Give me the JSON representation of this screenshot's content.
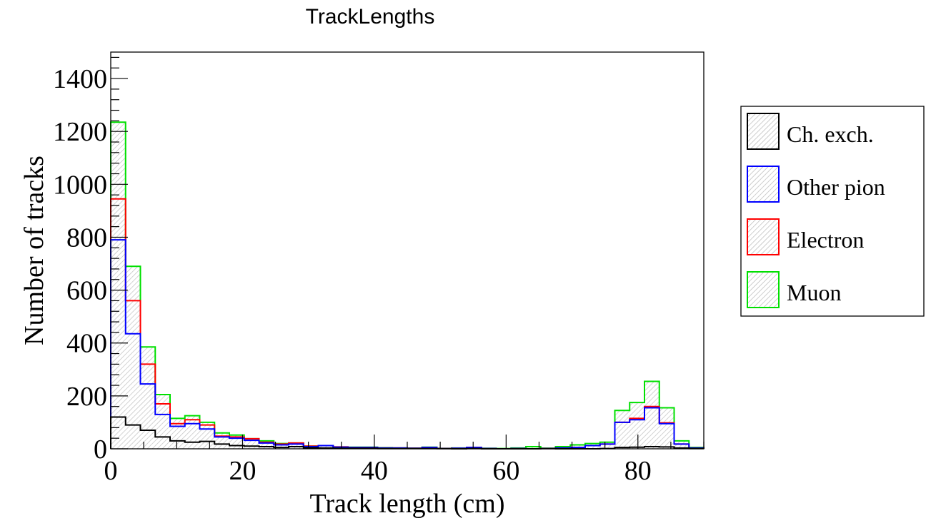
{
  "chart_data": {
    "type": "step",
    "title": "TrackLengths",
    "xlabel": "Track length (cm)",
    "ylabel": "Number of tracks",
    "xlim": [
      0,
      90
    ],
    "ylim": [
      0,
      1500
    ],
    "bin_width": 2.25,
    "x_ticks": [
      0,
      20,
      40,
      60,
      80
    ],
    "y_ticks": [
      0,
      200,
      400,
      600,
      800,
      1000,
      1200,
      1400
    ],
    "legend_position": "right",
    "series": [
      {
        "name": "Ch. exch.",
        "color": "#000000",
        "values": [
          120,
          90,
          70,
          45,
          30,
          25,
          28,
          18,
          12,
          10,
          8,
          5,
          8,
          4,
          3,
          2,
          2,
          2,
          1,
          1,
          1,
          1,
          1,
          0,
          1,
          0,
          0,
          0,
          0,
          1,
          0,
          0,
          0,
          1,
          5,
          6,
          8,
          7,
          3,
          1
        ]
      },
      {
        "name": "Other pion",
        "color": "#0000ff",
        "values": [
          790,
          435,
          245,
          130,
          85,
          95,
          75,
          45,
          40,
          32,
          22,
          15,
          18,
          8,
          12,
          6,
          5,
          5,
          3,
          3,
          2,
          5,
          1,
          2,
          5,
          1,
          0,
          1,
          0,
          1,
          3,
          5,
          12,
          18,
          100,
          110,
          155,
          95,
          18,
          3
        ]
      },
      {
        "name": "Electron",
        "color": "#ff0000",
        "values": [
          945,
          560,
          320,
          170,
          95,
          110,
          90,
          48,
          45,
          38,
          25,
          18,
          22,
          10,
          12,
          7,
          5,
          5,
          3,
          3,
          2,
          5,
          1,
          2,
          5,
          1,
          0,
          1,
          0,
          1,
          3,
          5,
          12,
          18,
          100,
          115,
          160,
          98,
          18,
          3
        ]
      },
      {
        "name": "Muon",
        "color": "#00e000",
        "values": [
          1235,
          690,
          385,
          205,
          115,
          125,
          100,
          60,
          52,
          38,
          30,
          20,
          22,
          10,
          12,
          7,
          6,
          6,
          4,
          3,
          2,
          6,
          1,
          3,
          5,
          2,
          1,
          3,
          8,
          2,
          8,
          15,
          20,
          25,
          145,
          175,
          255,
          155,
          30,
          5
        ]
      }
    ]
  }
}
